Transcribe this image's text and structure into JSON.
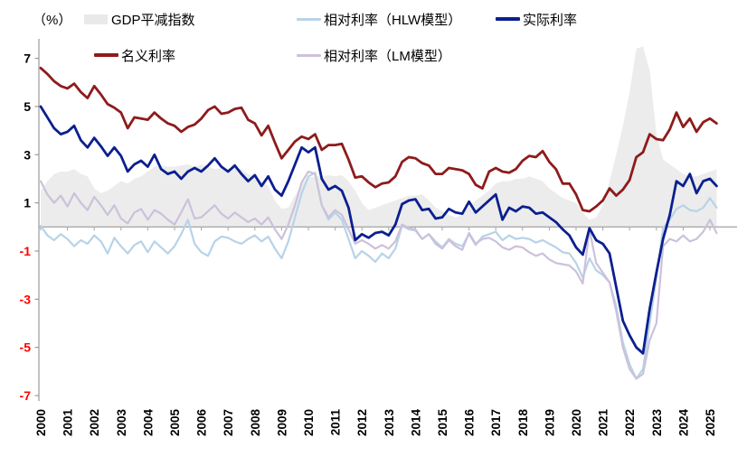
{
  "unit_label": "（%）",
  "colors": {
    "background": "#ffffff",
    "axis_line": "#9a9a9a",
    "zero_line": "#ababab",
    "tick_label_positive": "#000000",
    "tick_label_negative": "#ff0000",
    "area_fill": "#ececec",
    "nominal_red": "#8e1b1b",
    "real_navy": "#0b1f8f",
    "hlw_blue": "#b7d3e8",
    "lm_purple": "#ccc1db"
  },
  "legend": {
    "gdp": "GDP平减指数",
    "hlw": "相对利率（HLW模型）",
    "real": "实际利率",
    "nominal": "名义利率",
    "lm": "相对利率（LM模型）"
  },
  "chart_data": {
    "type": "line",
    "title": "",
    "xlabel": "",
    "ylabel": "（%）",
    "x_start": 2000,
    "x_step": 0.25,
    "x_end": 2025.25,
    "x_tick_labels": [
      "2000",
      "2001",
      "2002",
      "2003",
      "2004",
      "2005",
      "2006",
      "2007",
      "2008",
      "2009",
      "2010",
      "2011",
      "2012",
      "2013",
      "2014",
      "2015",
      "2016",
      "2017",
      "2018",
      "2019",
      "2020",
      "2021",
      "2022",
      "2023",
      "2024",
      "2025"
    ],
    "yticks": [
      -7,
      -5,
      -3,
      -1,
      1,
      3,
      5,
      7
    ],
    "ylim": [
      -7.35,
      7.7
    ],
    "grid": false,
    "legend_position": "top",
    "series": [
      {
        "name": "GDP平减指数",
        "type": "area",
        "color": "#ececec",
        "values": [
          1.5,
          1.9,
          2.2,
          2.3,
          2.3,
          2.4,
          2.2,
          2.1,
          1.6,
          1.4,
          1.5,
          1.7,
          1.9,
          1.8,
          2.0,
          2.1,
          2.3,
          2.5,
          2.55,
          2.5,
          2.5,
          2.55,
          2.6,
          2.5,
          2.6,
          2.5,
          2.4,
          2.45,
          2.4,
          2.45,
          2.4,
          2.2,
          2.1,
          1.9,
          1.7,
          1.1,
          0.75,
          0.8,
          1.3,
          1.8,
          2.05,
          2.1,
          2.1,
          2.15,
          2.1,
          2.15,
          1.9,
          1.5,
          1.0,
          0.7,
          0.8,
          0.9,
          1.0,
          1.1,
          1.2,
          1.3,
          1.3,
          1.35,
          1.1,
          0.8,
          0.65,
          0.5,
          0.4,
          0.5,
          0.85,
          1.1,
          1.3,
          1.5,
          1.8,
          1.9,
          1.9,
          2.0,
          2.0,
          2.1,
          2.0,
          1.9,
          1.6,
          1.4,
          1.2,
          1.1,
          1.0,
          0.6,
          0.3,
          0.4,
          0.9,
          1.9,
          3.0,
          4.2,
          5.6,
          7.4,
          7.5,
          6.5,
          3.9,
          2.8,
          2.6,
          2.4,
          2.2,
          2.1,
          2.1,
          2.2,
          2.3,
          2.4
        ]
      },
      {
        "name": "相对利率（HLW模型）",
        "type": "line",
        "color": "#b7d3e8",
        "width": 2.2,
        "values": [
          0.05,
          -0.35,
          -0.55,
          -0.3,
          -0.5,
          -0.8,
          -0.55,
          -0.7,
          -0.35,
          -0.6,
          -1.1,
          -0.45,
          -0.8,
          -1.1,
          -0.75,
          -0.6,
          -1.05,
          -0.6,
          -0.85,
          -1.1,
          -0.8,
          -0.3,
          0.3,
          -0.7,
          -1.05,
          -1.2,
          -0.6,
          -0.4,
          -0.45,
          -0.6,
          -0.7,
          -0.5,
          -0.35,
          -0.6,
          -0.4,
          -0.9,
          -1.3,
          -0.6,
          0.4,
          1.4,
          2.1,
          2.25,
          0.9,
          0.3,
          0.6,
          0.3,
          -0.5,
          -1.3,
          -1.0,
          -1.2,
          -1.45,
          -1.1,
          -1.3,
          -0.9,
          0.05,
          -0.1,
          -0.15,
          -0.5,
          -0.3,
          -0.6,
          -0.85,
          -0.5,
          -0.7,
          -0.8,
          -0.3,
          -0.75,
          -0.4,
          -0.3,
          -0.2,
          -0.55,
          -0.35,
          -0.5,
          -0.45,
          -0.5,
          -0.65,
          -0.55,
          -0.7,
          -0.85,
          -1.05,
          -1.1,
          -1.5,
          -2.1,
          -1.3,
          -1.8,
          -2.0,
          -2.3,
          -3.3,
          -4.8,
          -5.7,
          -6.3,
          -5.9,
          -4.0,
          -2.1,
          -0.05,
          0.3,
          0.75,
          0.9,
          0.7,
          0.65,
          0.8,
          1.2,
          0.8
        ]
      },
      {
        "name": "相对利率（LM模型）",
        "type": "line",
        "color": "#ccc1db",
        "width": 2.2,
        "values": [
          1.9,
          1.35,
          1.0,
          1.3,
          0.85,
          1.4,
          1.0,
          0.7,
          1.25,
          0.9,
          0.5,
          0.9,
          0.35,
          0.15,
          0.6,
          0.75,
          0.3,
          0.7,
          0.55,
          0.3,
          0.1,
          0.6,
          1.15,
          0.35,
          0.4,
          0.65,
          0.9,
          0.55,
          0.35,
          0.6,
          0.4,
          0.2,
          0.35,
          0.1,
          0.4,
          -0.1,
          -0.5,
          0.1,
          0.9,
          1.85,
          2.3,
          2.2,
          0.9,
          0.4,
          0.7,
          0.5,
          -0.1,
          -0.7,
          -0.55,
          -0.7,
          -0.9,
          -0.75,
          -0.9,
          -0.6,
          0.1,
          -0.05,
          -0.1,
          -0.5,
          -0.3,
          -0.7,
          -0.9,
          -0.55,
          -0.8,
          -0.95,
          -0.25,
          -0.7,
          -0.5,
          -0.45,
          -0.6,
          -0.85,
          -0.95,
          -0.8,
          -0.85,
          -1.05,
          -1.2,
          -1.1,
          -1.35,
          -1.5,
          -1.55,
          -1.6,
          -1.85,
          -2.35,
          -0.1,
          -1.5,
          -1.9,
          -2.3,
          -3.5,
          -5.0,
          -5.9,
          -6.3,
          -6.1,
          -4.7,
          -4.0,
          -0.8,
          -0.5,
          -0.6,
          -0.35,
          -0.6,
          -0.5,
          -0.2,
          0.3,
          -0.25
        ]
      },
      {
        "name": "名义利率",
        "type": "line",
        "color": "#8e1b1b",
        "width": 2.8,
        "values": [
          6.6,
          6.35,
          6.05,
          5.85,
          5.75,
          5.95,
          5.6,
          5.35,
          5.85,
          5.5,
          5.1,
          4.95,
          4.75,
          4.1,
          4.55,
          4.5,
          4.45,
          4.75,
          4.5,
          4.3,
          4.2,
          3.95,
          4.15,
          4.25,
          4.5,
          4.85,
          5.0,
          4.7,
          4.75,
          4.9,
          4.95,
          4.45,
          4.3,
          3.8,
          4.2,
          3.5,
          2.85,
          3.2,
          3.55,
          3.75,
          3.65,
          3.85,
          3.2,
          3.4,
          3.4,
          3.45,
          2.8,
          2.05,
          2.1,
          1.85,
          1.65,
          1.8,
          1.85,
          2.1,
          2.7,
          2.9,
          2.85,
          2.65,
          2.55,
          2.2,
          2.2,
          2.45,
          2.4,
          2.35,
          2.2,
          1.75,
          1.6,
          2.3,
          2.45,
          2.3,
          2.25,
          2.4,
          2.75,
          2.95,
          2.9,
          3.15,
          2.7,
          2.4,
          1.8,
          1.8,
          1.35,
          0.7,
          0.65,
          0.85,
          1.1,
          1.6,
          1.3,
          1.55,
          1.95,
          2.9,
          3.1,
          3.85,
          3.65,
          3.6,
          4.05,
          4.75,
          4.15,
          4.5,
          3.95,
          4.35,
          4.5,
          4.3
        ]
      },
      {
        "name": "实际利率",
        "type": "line",
        "color": "#0b1f8f",
        "width": 2.8,
        "values": [
          5.0,
          4.55,
          4.1,
          3.85,
          3.95,
          4.2,
          3.6,
          3.3,
          3.7,
          3.35,
          2.95,
          3.3,
          2.95,
          2.3,
          2.6,
          2.75,
          2.5,
          3.0,
          2.4,
          2.2,
          2.3,
          2.0,
          2.3,
          2.45,
          2.3,
          2.55,
          2.85,
          2.5,
          2.3,
          2.55,
          2.2,
          1.9,
          2.15,
          1.7,
          2.1,
          1.55,
          1.3,
          1.9,
          2.6,
          3.3,
          3.1,
          3.3,
          2.0,
          1.55,
          1.7,
          1.5,
          0.8,
          -0.55,
          -0.3,
          -0.45,
          -0.25,
          -0.2,
          -0.35,
          0.1,
          0.95,
          1.1,
          1.15,
          0.7,
          0.75,
          0.35,
          0.4,
          0.75,
          0.6,
          0.55,
          1.05,
          0.6,
          0.85,
          1.1,
          1.35,
          0.3,
          0.8,
          0.65,
          0.85,
          0.8,
          0.55,
          0.6,
          0.4,
          0.2,
          -0.1,
          -0.35,
          -0.85,
          -1.15,
          -0.05,
          -0.55,
          -0.7,
          -1.1,
          -2.5,
          -3.9,
          -4.5,
          -5.0,
          -5.25,
          -3.4,
          -1.9,
          -0.5,
          0.5,
          1.9,
          1.7,
          2.2,
          1.4,
          1.9,
          2.0,
          1.7
        ]
      }
    ]
  }
}
